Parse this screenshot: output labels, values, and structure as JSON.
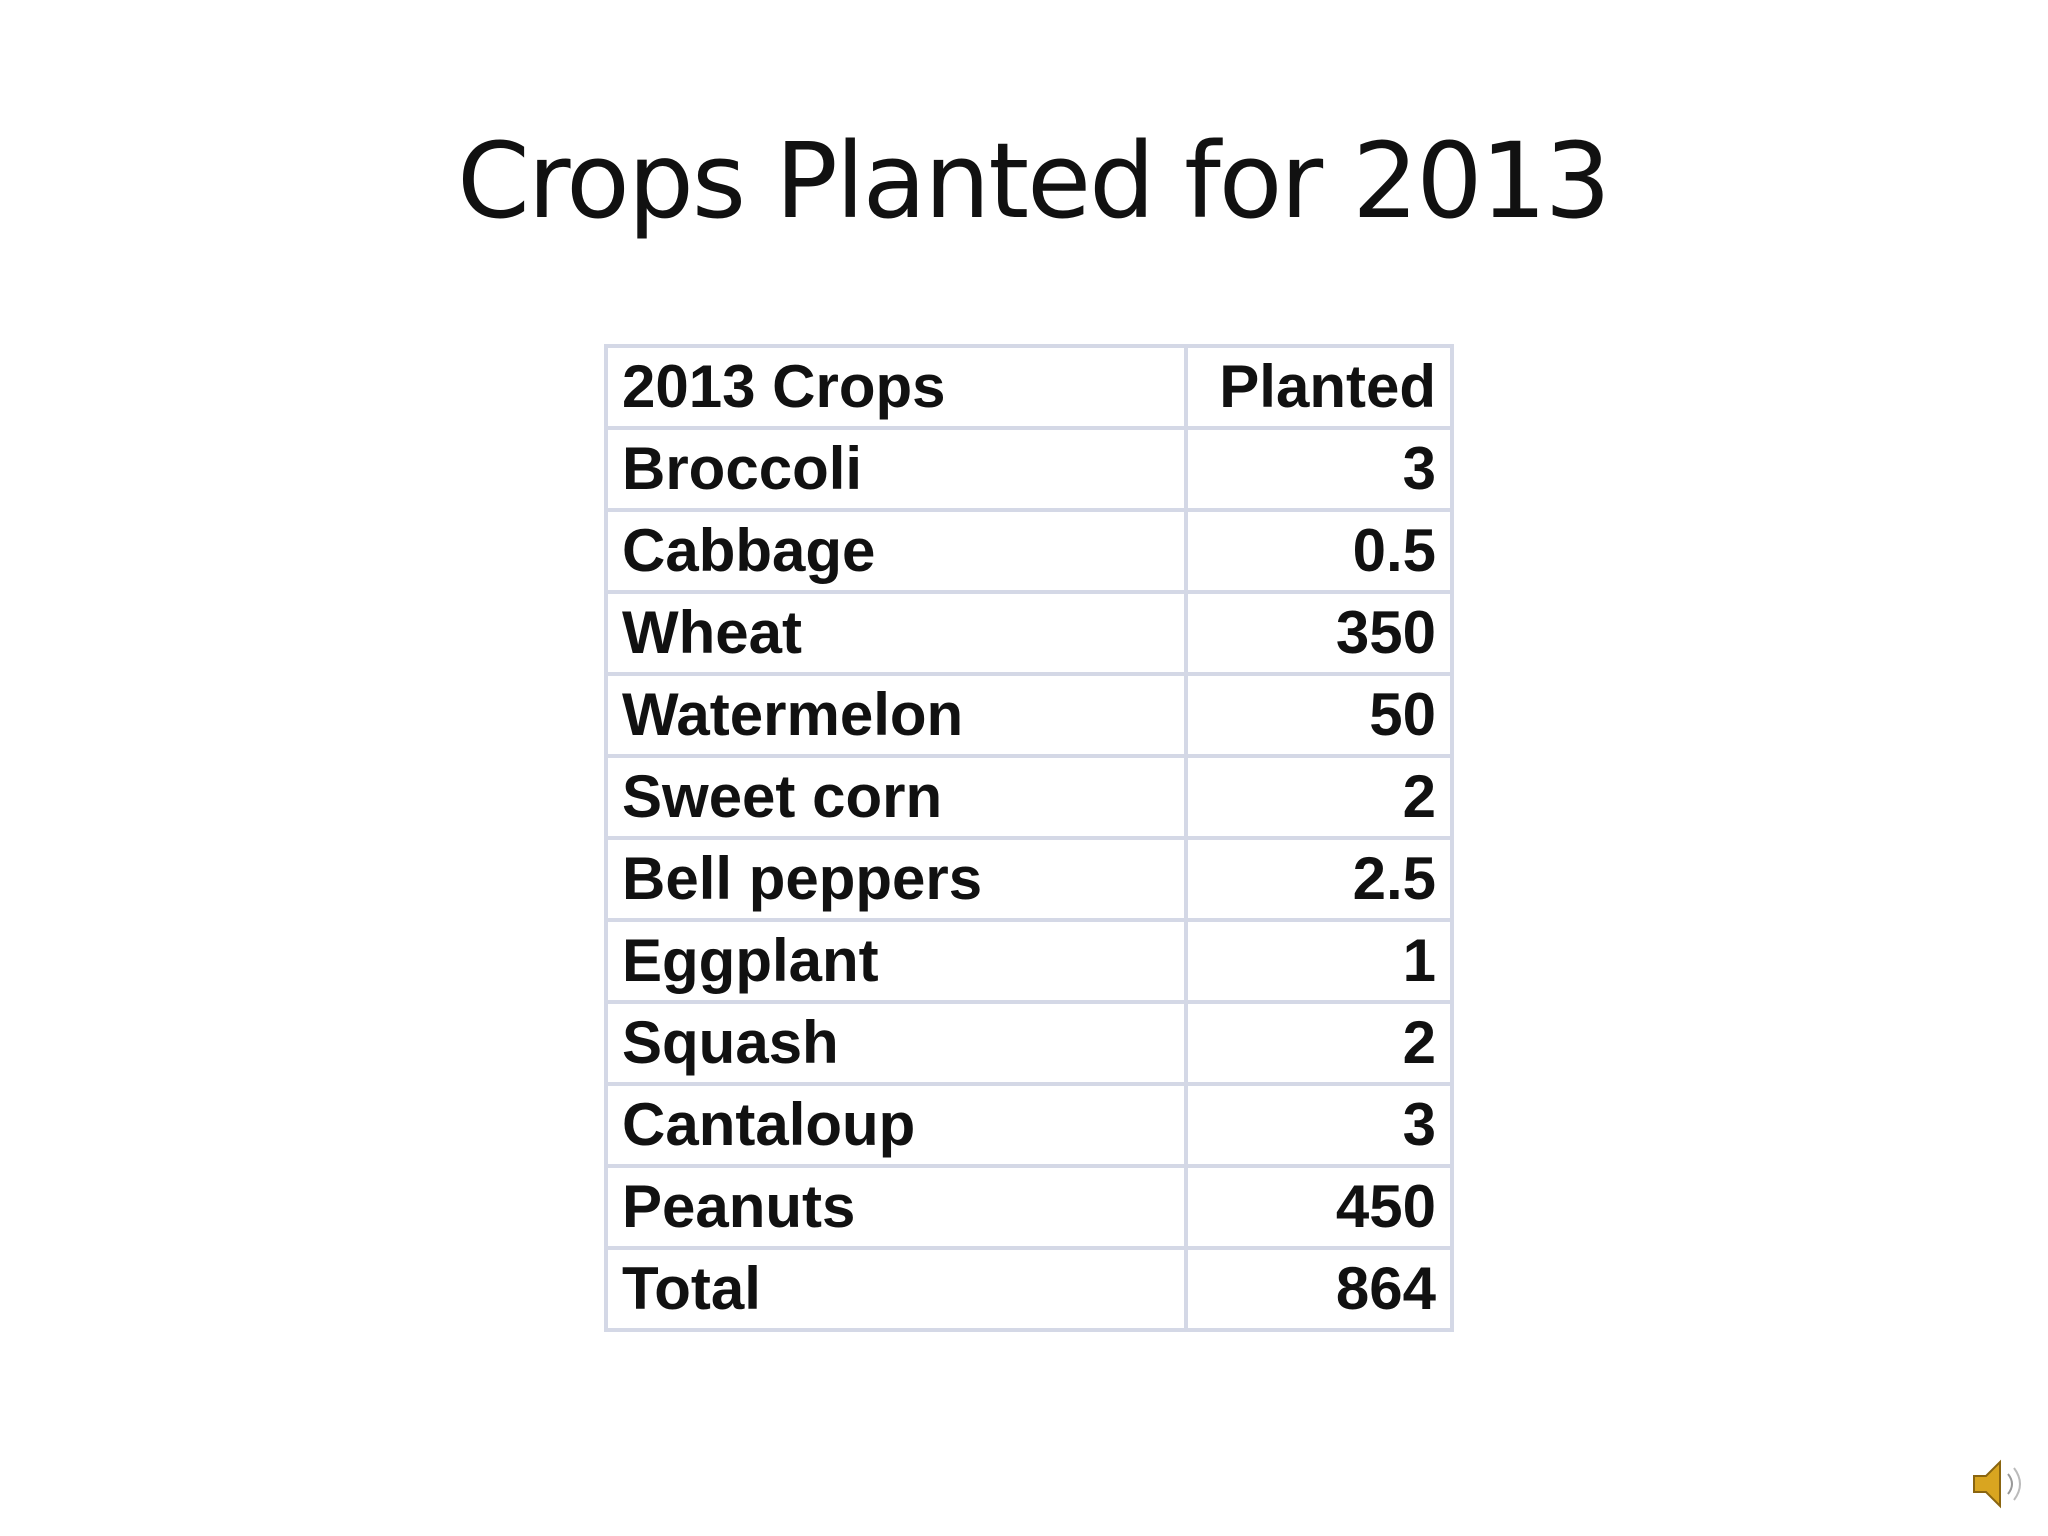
{
  "title": "Crops Planted for 2013",
  "table": {
    "header": [
      "2013 Crops",
      "Planted"
    ],
    "rows": [
      [
        "Broccoli",
        3
      ],
      [
        "Cabbage",
        0.5
      ],
      [
        "Wheat",
        350
      ],
      [
        "Watermelon",
        50
      ],
      [
        "Sweet corn",
        2
      ],
      [
        "Bell peppers",
        2.5
      ],
      [
        "Eggplant",
        1
      ],
      [
        "Squash",
        2
      ],
      [
        "Cantaloup",
        3
      ],
      [
        "Peanuts",
        450
      ],
      [
        "Total",
        864
      ]
    ]
  }
}
